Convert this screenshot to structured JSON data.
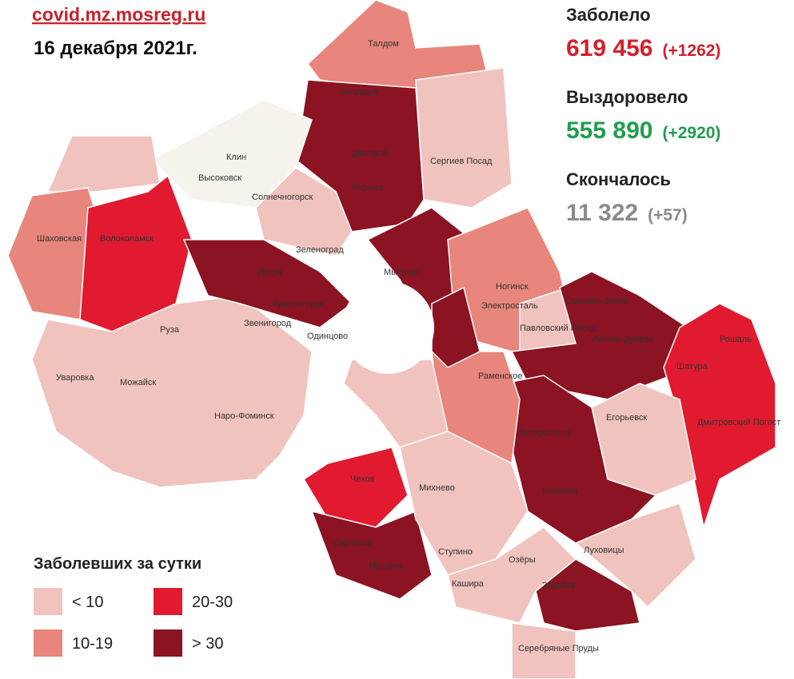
{
  "header": {
    "site": "covid.mz.mosreg.ru",
    "date": "16 декабря 2021г."
  },
  "stats": [
    {
      "label": "Заболело",
      "value": "619 456",
      "delta": "(+1262)",
      "color": "#d3202c"
    },
    {
      "label": "Выздоровело",
      "value": "555 890",
      "delta": "(+2920)",
      "color": "#1f9d4c"
    },
    {
      "label": "Скончалось",
      "value": "11 322",
      "delta": "(+57)",
      "color": "#8a8a8a"
    }
  ],
  "legend": {
    "title": "Заболевших за сутки",
    "items": [
      {
        "label": "< 10",
        "color": "#f1c3be"
      },
      {
        "label": "10-19",
        "color": "#e8857c"
      },
      {
        "label": "20-30",
        "color": "#e11a30"
      },
      {
        "label": "> 30",
        "color": "#8b1322"
      }
    ]
  },
  "places": [
    "Талдом",
    "Запрудня",
    "Дмитров",
    "Яхрома",
    "Сергиев Посад",
    "Клин",
    "Высоковск",
    "Солнечногорск",
    "Шаховская",
    "Волоколамск",
    "Зеленоград",
    "Истра",
    "Мытищи",
    "Красногорск",
    "Ногинск",
    "Электросталь",
    "Орехово-Зуево",
    "Ликино-Дулёво",
    "Павловский Посад",
    "Рошаль",
    "Шатура",
    "Руза",
    "Звенигород",
    "Одинцово",
    "Уваровка",
    "Можайск",
    "Наро-Фоминск",
    "Раменское",
    "Егорьевск",
    "Воскресенск",
    "Дмитровский Погост",
    "Чехов",
    "Михнево",
    "Коломна",
    "Серпухов",
    "Пущино",
    "Ступино",
    "Озёры",
    "Луховицы",
    "Кашира",
    "Зарайск",
    "Серебряные Пруды"
  ]
}
